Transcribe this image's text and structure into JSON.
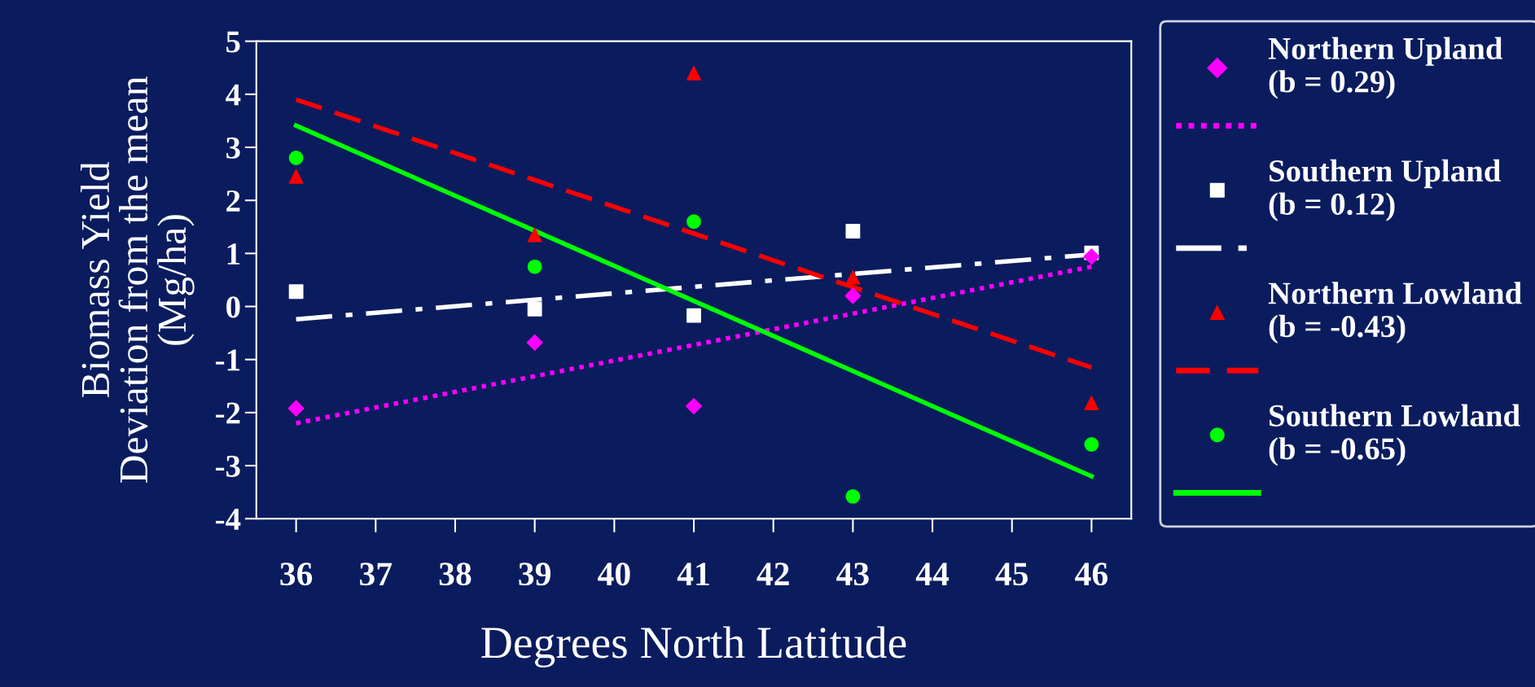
{
  "chart_data": {
    "type": "scatter",
    "xlabel": "Degrees North Latitude",
    "ylabel": "Biomass Yield\nDeviation from the mean\n(Mg/ha)",
    "xlim": [
      35.5,
      46.5
    ],
    "xticks": [
      36,
      37,
      38,
      39,
      40,
      41,
      42,
      43,
      44,
      45,
      46
    ],
    "ylim": [
      -4,
      5
    ],
    "yticks": [
      -4,
      -3,
      -2,
      -1,
      0,
      1,
      2,
      3,
      4,
      5
    ],
    "grid": false,
    "legend": "right",
    "series": [
      {
        "name": "Northern Upland\n(b = 0.29)",
        "color": "#ff00ff",
        "marker": "diamond",
        "x": [
          36,
          39,
          41,
          43,
          46
        ],
        "values": [
          -1.92,
          -0.68,
          -1.88,
          0.2,
          0.94
        ]
      },
      {
        "type": "line",
        "color": "#ff00ff",
        "line_style": "dotted",
        "x": [
          36,
          46
        ],
        "values": [
          -2.2,
          0.75
        ]
      },
      {
        "name": "Southern Upland\n(b = 0.12)",
        "color": "#ffffff",
        "marker": "square",
        "x": [
          36,
          39,
          41,
          43,
          46
        ],
        "values": [
          0.28,
          -0.05,
          -0.17,
          1.42,
          1.01
        ]
      },
      {
        "type": "line",
        "color": "#ffffff",
        "line_style": "dashdot",
        "x": [
          36,
          46
        ],
        "values": [
          -0.24,
          0.98
        ]
      },
      {
        "name": "Northern Lowland\n(b = -0.43)",
        "color": "#ff0000",
        "marker": "triangle",
        "x": [
          36,
          39,
          41,
          43,
          46
        ],
        "values": [
          2.45,
          1.35,
          4.4,
          0.55,
          -1.82
        ]
      },
      {
        "type": "line",
        "color": "#ff0000",
        "line_style": "dashed",
        "x": [
          36,
          46
        ],
        "values": [
          3.9,
          -1.15
        ]
      },
      {
        "name": "Southern Lowland\n(b = -0.65)",
        "color": "#00ff00",
        "marker": "circle",
        "x": [
          36,
          39,
          41,
          43,
          46
        ],
        "values": [
          2.8,
          0.75,
          1.6,
          -3.58,
          -2.6
        ]
      },
      {
        "type": "line",
        "color": "#00ff00",
        "line_style": "solid",
        "x": [
          36,
          46
        ],
        "values": [
          3.41,
          -3.2
        ]
      }
    ]
  }
}
